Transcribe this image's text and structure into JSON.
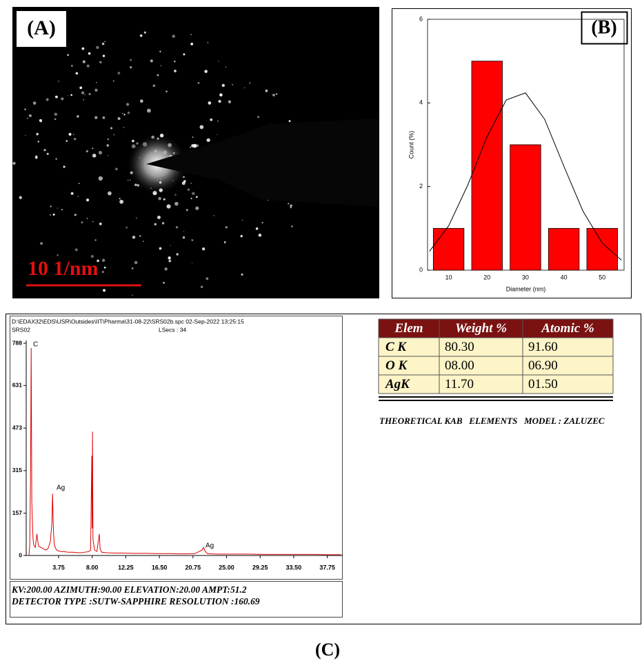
{
  "panel_a": {
    "label": "(A)",
    "scale_bar": "10 1/nm"
  },
  "chart_data": [
    {
      "type": "histogram",
      "panel_label": "(B)",
      "x_label": "Diameter (nm)",
      "y_label": "Count (%)",
      "bins": [
        5,
        15,
        25,
        35,
        45,
        55
      ],
      "values": [
        1,
        5,
        3,
        1,
        1
      ],
      "color": "#ff0000",
      "xlim": [
        4.5,
        55.7
      ],
      "xticks": [
        10,
        20,
        30,
        40,
        50
      ],
      "ylim": [
        0,
        6
      ],
      "yticks": [
        0,
        2,
        4,
        6
      ],
      "fit_curve": {
        "color": "#000000",
        "x": [
          5,
          10,
          15,
          20,
          25,
          30,
          35,
          40,
          45,
          50,
          55
        ],
        "y": [
          0.45,
          1.06,
          2.04,
          3.19,
          4.07,
          4.24,
          3.61,
          2.49,
          1.41,
          0.65,
          0.24
        ]
      }
    },
    {
      "type": "line",
      "file_header": "D:\\EDAX32\\EDS\\USR\\Outsides\\IIT\\Pharma\\31-08-22\\SRS02b.spc  02-Sep-2022 13:25:15",
      "sample": "SRS02",
      "live_time": "LSecs : 34",
      "annotations": [
        "C",
        "Ag",
        "Ag"
      ],
      "xlim": [
        -0.35,
        39.7
      ],
      "xticks": [
        3.75,
        {
          "value": 8,
          "label": "8.00"
        },
        12.25,
        {
          "value": 16.5,
          "label": "16.50"
        },
        20.75,
        {
          "value": 25,
          "label": "25.00"
        },
        29.25,
        {
          "value": 33.5,
          "label": "33.50"
        },
        37.75
      ],
      "ylim": [
        0,
        788
      ],
      "yticks": [
        0,
        157,
        315,
        473,
        631,
        788
      ],
      "series": [
        {
          "color": "#dd0000",
          "x": [
            0,
            0.1,
            0.2,
            0.28,
            0.36,
            0.45,
            0.52,
            0.6,
            0.8,
            1.0,
            1.2,
            1.5,
            1.8,
            2.1,
            2.4,
            2.7,
            2.9,
            2.98,
            3.1,
            3.2,
            3.4,
            3.6,
            4.0,
            4.5,
            5.0,
            5.5,
            6.0,
            6.5,
            7.0,
            7.5,
            7.8,
            7.95,
            8.0,
            8.04,
            8.1,
            8.3,
            8.6,
            8.9,
            9.0,
            9.2,
            10,
            11,
            12,
            13,
            14,
            15,
            16,
            17,
            18,
            19,
            20,
            21,
            21.9,
            22.1,
            22.3,
            22.6,
            23,
            24,
            26,
            28,
            30,
            32,
            34,
            36,
            38,
            39.5
          ],
          "values": [
            0,
            40,
            300,
            770,
            200,
            110,
            60,
            40,
            30,
            80,
            35,
            30,
            25,
            20,
            25,
            50,
            120,
            230,
            90,
            40,
            25,
            18,
            15,
            14,
            12,
            12,
            11,
            10,
            12,
            14,
            20,
            370,
            100,
            460,
            60,
            20,
            15,
            80,
            25,
            12,
            10,
            9,
            9,
            8,
            8,
            8,
            7,
            7,
            7,
            6,
            6,
            7,
            20,
            30,
            15,
            7,
            6,
            5,
            5,
            5,
            4,
            4,
            4,
            4,
            3,
            3
          ]
        }
      ],
      "footer": [
        "KV:200.00   AZIMUTH:90.00   ELEVATION:20.00   AMPT:51.2",
        "DETECTOR TYPE :SUTW-SAPPHIRE   RESOLUTION :160.69"
      ]
    }
  ],
  "table": {
    "header": [
      "Elem",
      "Weight %",
      "Atomic %"
    ],
    "rows": [
      [
        "C K",
        "80.30",
        "91.60"
      ],
      [
        "O K",
        "08.00",
        "06.90"
      ],
      [
        "AgK",
        "11.70",
        "01.50"
      ]
    ]
  },
  "table_note": "THEORETICAL KAB   ELEMENTS   MODEL : ZALUZEC",
  "panel_c_label": "(C)"
}
